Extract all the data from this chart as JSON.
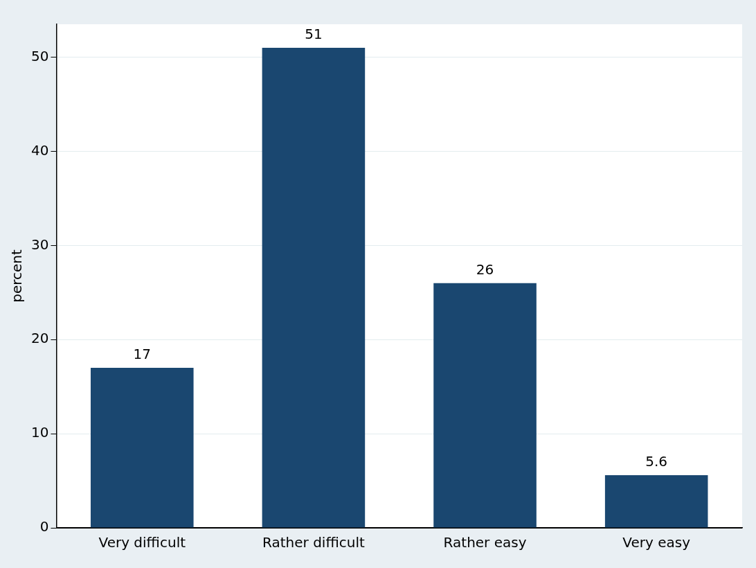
{
  "chart_data": {
    "type": "bar",
    "ylabel": "percent",
    "categories": [
      "Very difficult",
      "Rather difficult",
      "Rather easy",
      "Very easy"
    ],
    "values": [
      17,
      51,
      26,
      5.6
    ],
    "color": "#1a4770",
    "ylim": [
      0,
      53.5
    ],
    "yticks": [
      0,
      10,
      20,
      30,
      40,
      50
    ],
    "grid": "y",
    "data_labels": true
  }
}
